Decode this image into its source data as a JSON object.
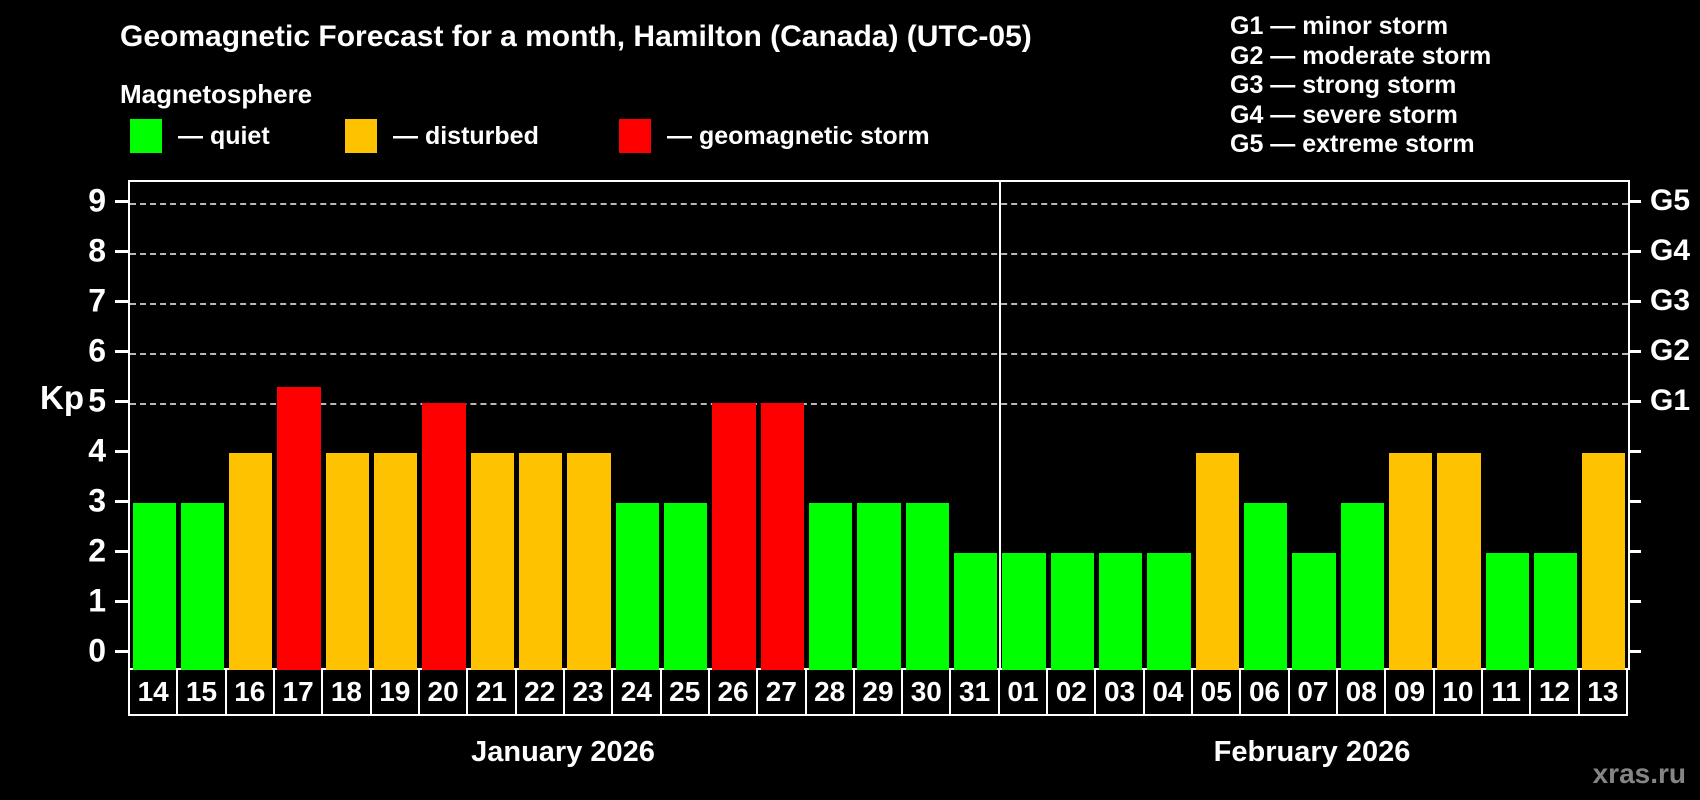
{
  "title": "Geomagnetic Forecast for a month, Hamilton (Canada) (UTC-05)",
  "magnetosphere_legend": {
    "heading": "Magnetosphere",
    "items": [
      {
        "name": "quiet",
        "label": "— quiet"
      },
      {
        "name": "disturbed",
        "label": "— disturbed"
      },
      {
        "name": "storm",
        "label": "— geomagnetic storm"
      }
    ]
  },
  "storm_scale_legend": [
    "G1 — minor storm",
    "G2 — moderate storm",
    "G3 — strong storm",
    "G4 — severe storm",
    "G5 — extreme storm"
  ],
  "colors": {
    "quiet": "#00ff00",
    "disturbed": "#ffc200",
    "storm": "#ff0000",
    "background": "#000000",
    "text": "#ffffff",
    "gridline": "#b8b8b8",
    "watermark": "#858585"
  },
  "watermark": "xras.ru",
  "chart_data": {
    "type": "bar",
    "ylabel": "Kp",
    "ylim": [
      0,
      9.45
    ],
    "yticks": [
      0,
      1,
      2,
      3,
      4,
      5,
      6,
      7,
      8,
      9
    ],
    "gridlines_at": [
      5,
      6,
      7,
      8,
      9
    ],
    "grid": "dashed, storm levels only",
    "legend_position": "top",
    "right_axis": [
      {
        "kp": 5,
        "label": "G1"
      },
      {
        "kp": 6,
        "label": "G2"
      },
      {
        "kp": 7,
        "label": "G3"
      },
      {
        "kp": 8,
        "label": "G4"
      },
      {
        "kp": 9,
        "label": "G5"
      }
    ],
    "months": [
      {
        "label": "January 2026",
        "days": [
          {
            "day": "14",
            "kp": 3,
            "status": "quiet"
          },
          {
            "day": "15",
            "kp": 3,
            "status": "quiet"
          },
          {
            "day": "16",
            "kp": 4,
            "status": "disturbed"
          },
          {
            "day": "17",
            "kp": 5.33,
            "status": "storm"
          },
          {
            "day": "18",
            "kp": 4,
            "status": "disturbed"
          },
          {
            "day": "19",
            "kp": 4,
            "status": "disturbed"
          },
          {
            "day": "20",
            "kp": 5,
            "status": "storm"
          },
          {
            "day": "21",
            "kp": 4,
            "status": "disturbed"
          },
          {
            "day": "22",
            "kp": 4,
            "status": "disturbed"
          },
          {
            "day": "23",
            "kp": 4,
            "status": "disturbed"
          },
          {
            "day": "24",
            "kp": 3,
            "status": "quiet"
          },
          {
            "day": "25",
            "kp": 3,
            "status": "quiet"
          },
          {
            "day": "26",
            "kp": 5,
            "status": "storm"
          },
          {
            "day": "27",
            "kp": 5,
            "status": "storm"
          },
          {
            "day": "28",
            "kp": 3,
            "status": "quiet"
          },
          {
            "day": "29",
            "kp": 3,
            "status": "quiet"
          },
          {
            "day": "30",
            "kp": 3,
            "status": "quiet"
          },
          {
            "day": "31",
            "kp": 2,
            "status": "quiet"
          }
        ]
      },
      {
        "label": "February 2026",
        "days": [
          {
            "day": "01",
            "kp": 2,
            "status": "quiet"
          },
          {
            "day": "02",
            "kp": 2,
            "status": "quiet"
          },
          {
            "day": "03",
            "kp": 2,
            "status": "quiet"
          },
          {
            "day": "04",
            "kp": 2,
            "status": "quiet"
          },
          {
            "day": "05",
            "kp": 4,
            "status": "disturbed"
          },
          {
            "day": "06",
            "kp": 3,
            "status": "quiet"
          },
          {
            "day": "07",
            "kp": 2,
            "status": "quiet"
          },
          {
            "day": "08",
            "kp": 3,
            "status": "quiet"
          },
          {
            "day": "09",
            "kp": 4,
            "status": "disturbed"
          },
          {
            "day": "10",
            "kp": 4,
            "status": "disturbed"
          },
          {
            "day": "11",
            "kp": 2,
            "status": "quiet"
          },
          {
            "day": "12",
            "kp": 2,
            "status": "quiet"
          },
          {
            "day": "13",
            "kp": 4,
            "status": "disturbed"
          }
        ]
      }
    ]
  }
}
